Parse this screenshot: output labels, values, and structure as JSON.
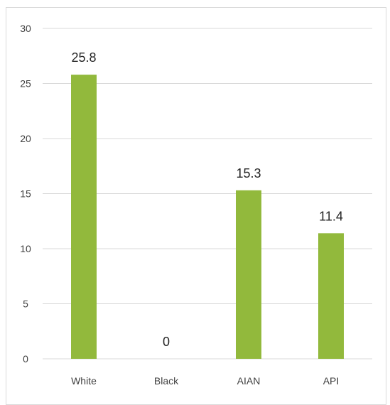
{
  "chart_data": {
    "type": "bar",
    "categories": [
      "White",
      "Black",
      "AIAN",
      "API"
    ],
    "values": [
      25.8,
      0,
      15.3,
      11.4
    ],
    "data_labels": [
      "25.8",
      "0",
      "15.3",
      "11.4"
    ],
    "ylim": [
      0,
      30
    ],
    "yticks": [
      0,
      5,
      10,
      15,
      20,
      25,
      30
    ],
    "ytick_labels": [
      "0",
      "5",
      "10",
      "15",
      "20",
      "25",
      "30"
    ],
    "grid": true,
    "legend": "none",
    "bar_color": "#92b93c",
    "grid_color": "#d9d9d9"
  }
}
